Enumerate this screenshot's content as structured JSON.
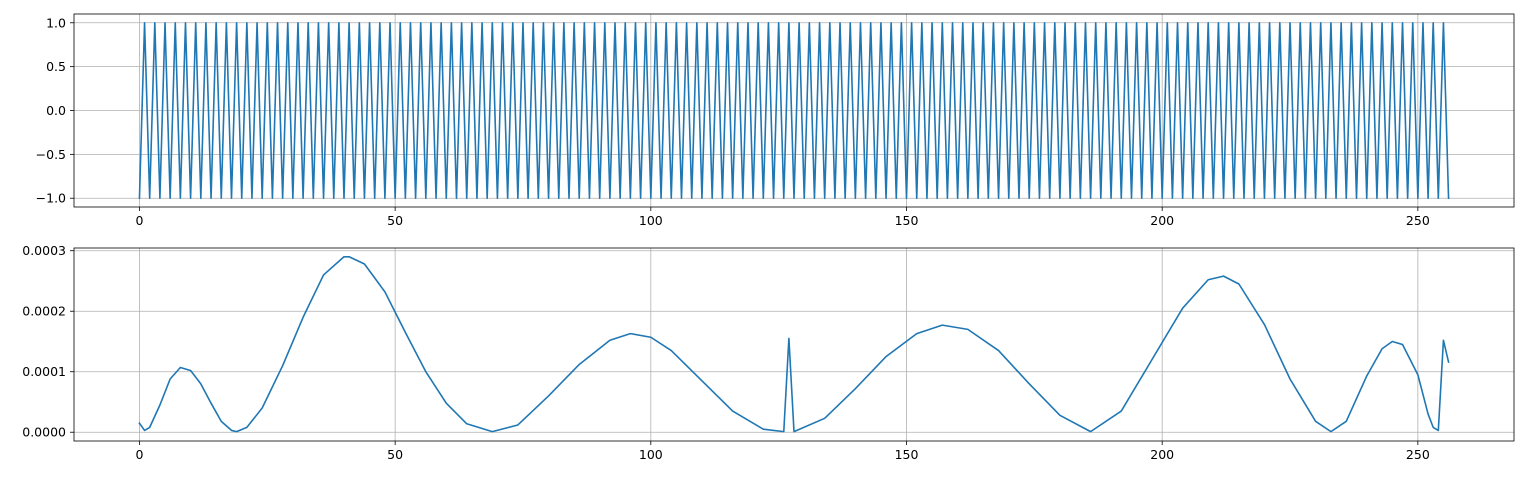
{
  "chart_data": [
    {
      "type": "line",
      "title": "",
      "xlabel": "",
      "ylabel": "",
      "xlim": [
        -12.8,
        268.8
      ],
      "ylim": [
        -1.1,
        1.1
      ],
      "grid": true,
      "xticks": [
        0,
        50,
        100,
        150,
        200,
        250
      ],
      "xtick_labels": [
        "0",
        "50",
        "100",
        "150",
        "200",
        "250"
      ],
      "yticks": [
        -1.0,
        -0.5,
        0.0,
        0.5,
        1.0
      ],
      "ytick_labels": [
        "−1.0",
        "−0.5",
        "0.0",
        "0.5",
        "1.0"
      ],
      "color": "#1f77b4",
      "series": [
        {
          "pattern": "alternating",
          "x_range": [
            0,
            256
          ],
          "y_even": -1.0,
          "y_odd": 1.0
        }
      ]
    },
    {
      "type": "line",
      "title": "",
      "xlabel": "",
      "ylabel": "",
      "xlim": [
        -12.8,
        268.8
      ],
      "ylim": [
        -1.45e-05,
        0.0003045
      ],
      "grid": true,
      "xticks": [
        0,
        50,
        100,
        150,
        200,
        250
      ],
      "xtick_labels": [
        "0",
        "50",
        "100",
        "150",
        "200",
        "250"
      ],
      "yticks": [
        0.0,
        0.0001,
        0.0002,
        0.0003
      ],
      "ytick_labels": [
        "0.0000",
        "0.0001",
        "0.0002",
        "0.0003"
      ],
      "color": "#1f77b4",
      "series": [
        {
          "x": [
            0,
            1,
            2,
            4,
            6,
            8,
            10,
            12,
            14,
            16,
            18,
            19,
            21,
            24,
            28,
            32,
            36,
            40,
            41,
            44,
            48,
            52,
            56,
            60,
            64,
            69,
            74,
            80,
            86,
            92,
            96,
            100,
            104,
            110,
            116,
            122,
            126,
            127,
            128,
            134,
            140,
            146,
            152,
            157,
            162,
            168,
            174,
            180,
            186,
            192,
            198,
            204,
            209,
            212,
            215,
            220,
            225,
            230,
            233,
            236,
            240,
            243,
            245,
            247,
            250,
            252,
            253,
            254,
            255,
            256
          ],
          "y": [
            1.5e-05,
            3e-06,
            8e-06,
            4.5e-05,
            8.8e-05,
            0.000107,
            0.000102,
            8e-05,
            4.8e-05,
            1.8e-05,
            3e-06,
            1e-06,
            8e-06,
            4e-05,
            0.00011,
            0.00019,
            0.00026,
            0.00029,
            0.00029,
            0.000278,
            0.000232,
            0.000165,
            0.0001,
            4.8e-05,
            1.4e-05,
            1e-06,
            1.2e-05,
            6e-05,
            0.000112,
            0.000152,
            0.000163,
            0.000157,
            0.000135,
            8.5e-05,
            3.5e-05,
            5e-06,
            1e-06,
            0.000155,
            1e-06,
            2.3e-05,
            7.2e-05,
            0.000125,
            0.000163,
            0.000177,
            0.00017,
            0.000135,
            8e-05,
            2.8e-05,
            1e-06,
            3.5e-05,
            0.00012,
            0.000205,
            0.000252,
            0.000258,
            0.000245,
            0.000178,
            8.8e-05,
            1.8e-05,
            1e-06,
            1.8e-05,
            9.3e-05,
            0.000138,
            0.00015,
            0.000145,
            9.5e-05,
            3e-05,
            8e-06,
            3e-06,
            0.000152,
            0.000116
          ]
        }
      ]
    }
  ]
}
